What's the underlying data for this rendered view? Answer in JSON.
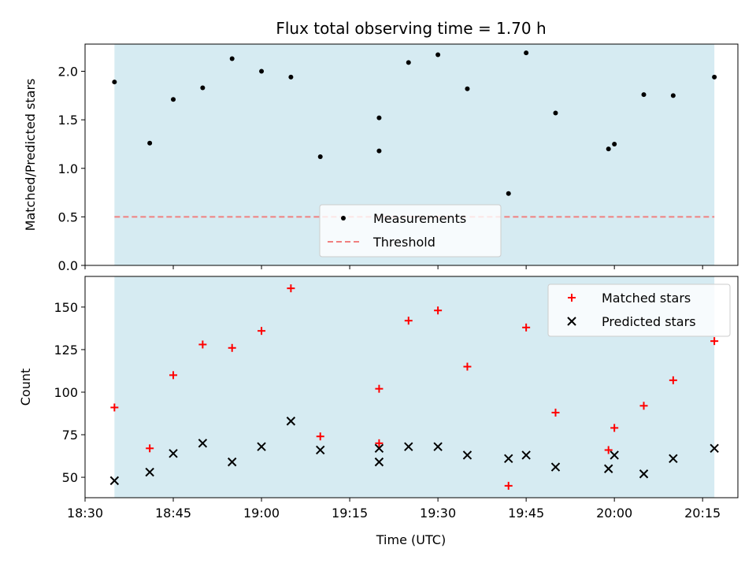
{
  "chart_data": {
    "type": "scatter",
    "title": "Flux total observing time = 1.70 h",
    "x_label": "Time (UTC)",
    "x_ticks": [
      "18:30",
      "18:45",
      "19:00",
      "19:15",
      "19:30",
      "19:45",
      "20:00",
      "20:15"
    ],
    "x_range": [
      "18:30",
      "20:21"
    ],
    "shaded_interval": [
      "18:35",
      "20:17"
    ],
    "colors": {
      "shade": "#add8e6",
      "measurements": "#000000",
      "threshold": "#f08080",
      "matched": "#ff0000",
      "predicted": "#000000"
    },
    "panels": [
      {
        "id": "ratio",
        "y_label": "Matched/Predicted stars",
        "y_range": [
          0,
          2.28
        ],
        "y_ticks": [
          "0.0",
          "0.5",
          "1.0",
          "1.5",
          "2.0"
        ],
        "legend": {
          "position": "lower-center",
          "entries": [
            "Measurements",
            "Threshold"
          ]
        },
        "threshold": 0.5,
        "series": [
          {
            "name": "Measurements",
            "marker": "dot",
            "points": [
              [
                "18:35",
                1.89
              ],
              [
                "18:41",
                1.26
              ],
              [
                "18:45",
                1.71
              ],
              [
                "18:50",
                1.83
              ],
              [
                "18:55",
                2.13
              ],
              [
                "19:00",
                2.0
              ],
              [
                "19:05",
                1.94
              ],
              [
                "19:10",
                1.12
              ],
              [
                "19:20",
                1.18
              ],
              [
                "19:20",
                1.52
              ],
              [
                "19:25",
                2.09
              ],
              [
                "19:30",
                2.17
              ],
              [
                "19:35",
                1.82
              ],
              [
                "19:42",
                0.74
              ],
              [
                "19:45",
                2.19
              ],
              [
                "19:50",
                1.57
              ],
              [
                "19:59",
                1.2
              ],
              [
                "20:00",
                1.25
              ],
              [
                "20:05",
                1.76
              ],
              [
                "20:10",
                1.75
              ],
              [
                "20:17",
                1.94
              ]
            ]
          }
        ]
      },
      {
        "id": "count",
        "y_label": "Count",
        "y_range": [
          38,
          168
        ],
        "y_ticks": [
          "50",
          "75",
          "100",
          "125",
          "150"
        ],
        "legend": {
          "position": "upper-right",
          "entries": [
            "Matched stars",
            "Predicted stars"
          ]
        },
        "series": [
          {
            "name": "Matched stars",
            "marker": "plus",
            "points": [
              [
                "18:35",
                91
              ],
              [
                "18:41",
                67
              ],
              [
                "18:45",
                110
              ],
              [
                "18:50",
                128
              ],
              [
                "18:55",
                126
              ],
              [
                "19:00",
                136
              ],
              [
                "19:05",
                161
              ],
              [
                "19:10",
                74
              ],
              [
                "19:20",
                70
              ],
              [
                "19:20",
                102
              ],
              [
                "19:25",
                142
              ],
              [
                "19:30",
                148
              ],
              [
                "19:35",
                115
              ],
              [
                "19:42",
                45
              ],
              [
                "19:45",
                138
              ],
              [
                "19:50",
                88
              ],
              [
                "19:59",
                66
              ],
              [
                "20:00",
                79
              ],
              [
                "20:05",
                92
              ],
              [
                "20:10",
                107
              ],
              [
                "20:17",
                130
              ]
            ]
          },
          {
            "name": "Predicted stars",
            "marker": "cross",
            "points": [
              [
                "18:35",
                48
              ],
              [
                "18:41",
                53
              ],
              [
                "18:45",
                64
              ],
              [
                "18:50",
                70
              ],
              [
                "18:55",
                59
              ],
              [
                "19:00",
                68
              ],
              [
                "19:05",
                83
              ],
              [
                "19:10",
                66
              ],
              [
                "19:20",
                59
              ],
              [
                "19:20",
                67
              ],
              [
                "19:25",
                68
              ],
              [
                "19:30",
                68
              ],
              [
                "19:35",
                63
              ],
              [
                "19:42",
                61
              ],
              [
                "19:45",
                63
              ],
              [
                "19:50",
                56
              ],
              [
                "19:59",
                55
              ],
              [
                "20:00",
                63
              ],
              [
                "20:05",
                52
              ],
              [
                "20:10",
                61
              ],
              [
                "20:17",
                67
              ]
            ]
          }
        ]
      }
    ]
  }
}
